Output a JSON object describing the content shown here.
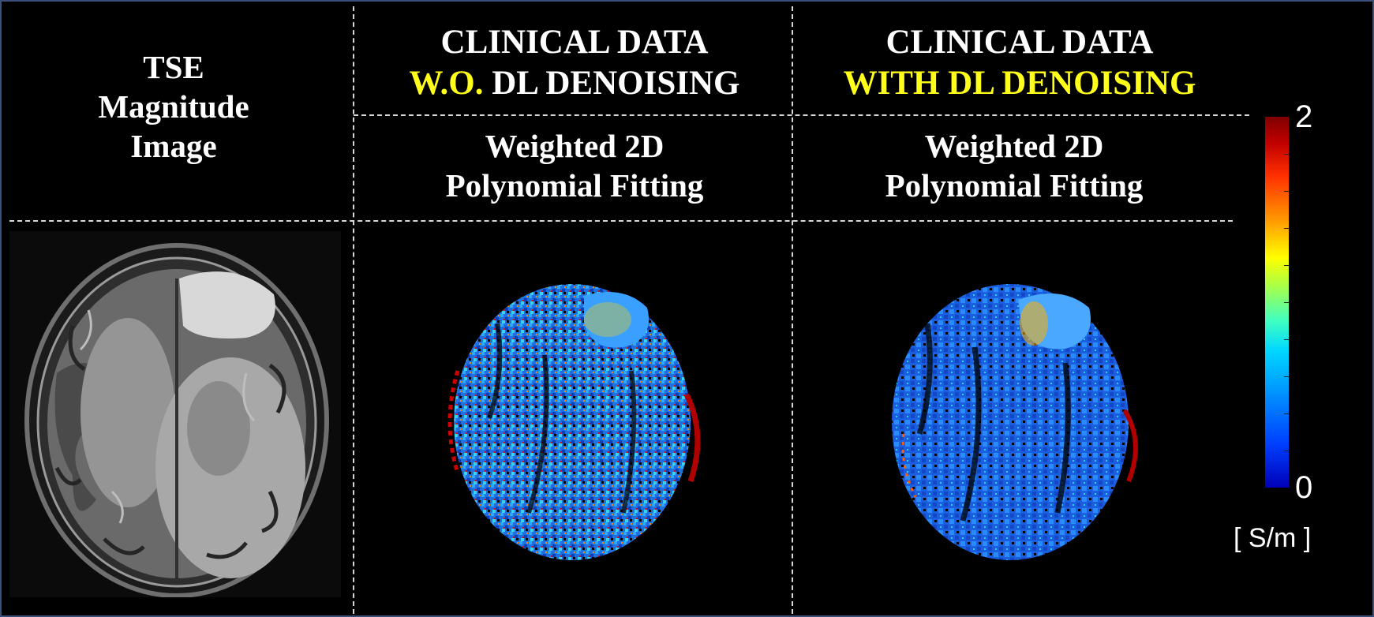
{
  "columns": [
    {
      "title_lines": [
        "TSE",
        "Magnitude",
        "Image"
      ]
    },
    {
      "header_line1": "CLINICAL DATA",
      "header_line2_highlight": "W.O.",
      "header_line2_rest": " DL DENOISING",
      "method_lines": [
        "Weighted 2D",
        "Polynomial Fitting"
      ]
    },
    {
      "header_line1": "CLINICAL DATA",
      "header_line2_highlight": "WITH DL DENOISING",
      "method_lines": [
        "Weighted 2D",
        "Polynomial Fitting"
      ]
    }
  ],
  "colorbar": {
    "max_label": "2",
    "min_label": "0",
    "unit": "[ S/m ]",
    "colormap": "jet"
  },
  "colors": {
    "background": "#000000",
    "highlight_text": "#ffff1a",
    "frame_border": "#3a4f7a"
  }
}
